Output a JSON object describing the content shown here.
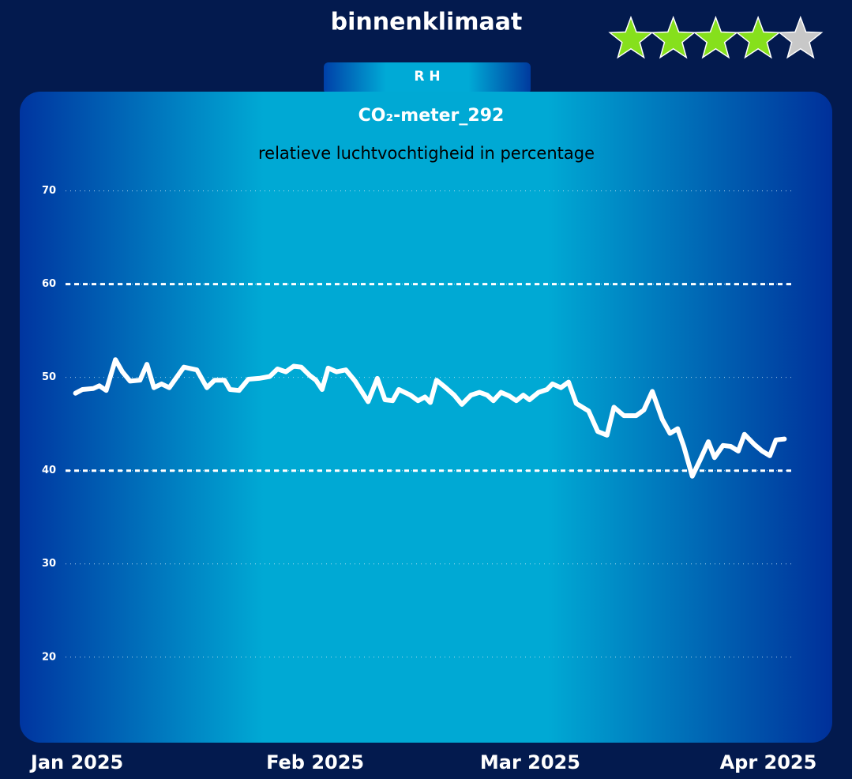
{
  "header": {
    "title": "binnenklimaat"
  },
  "rating": {
    "stars": 4,
    "max": 5
  },
  "tab": {
    "label": "R H"
  },
  "chart_data": {
    "type": "line",
    "title": "CO₂-meter_292",
    "subtitle": "relatieve luchtvochtigheid in percentage",
    "x": [
      -0.2,
      0.7,
      2.1,
      2.9,
      3.8,
      5.0,
      5.9,
      6.9,
      8.2,
      9.1,
      10.0,
      11.0,
      12.0,
      13.9,
      15.6,
      16.9,
      17.9,
      19.2,
      19.9,
      21.1,
      22.3,
      23.7,
      25.1,
      26.1,
      27.2,
      28.2,
      29.2,
      30.3,
      31.1,
      31.9,
      32.7,
      33.8,
      35.0,
      36.2,
      37.9,
      39.1,
      40.1,
      41.1,
      41.9,
      43.4,
      44.4,
      45.3,
      46.0,
      46.8,
      48.0,
      49.1,
      50.1,
      51.3,
      52.4,
      53.4,
      54.2,
      55.2,
      56.3,
      57.2,
      58.1,
      58.9,
      60.1,
      61.2,
      61.9,
      63.0,
      64.0,
      65.0,
      66.6,
      67.8,
      69.0,
      69.9,
      71.2,
      72.8,
      73.8,
      74.9,
      76.2,
      77.2,
      78.2,
      79.0,
      80.1,
      81.1,
      82.2,
      83.0,
      84.1,
      85.1,
      86.1,
      86.9,
      88.2,
      89.2,
      90.2,
      91.0,
      92.1
    ],
    "values": [
      48.3,
      48.7,
      48.8,
      49.1,
      48.6,
      51.9,
      50.6,
      49.6,
      49.7,
      51.4,
      48.9,
      49.3,
      48.9,
      51.1,
      50.8,
      48.9,
      49.7,
      49.7,
      48.7,
      48.6,
      49.8,
      49.9,
      50.1,
      50.9,
      50.6,
      51.2,
      51.1,
      50.2,
      49.7,
      48.7,
      51.0,
      50.6,
      50.8,
      49.6,
      47.4,
      49.9,
      47.6,
      47.5,
      48.7,
      48.1,
      47.5,
      47.9,
      47.3,
      49.7,
      48.9,
      48.1,
      47.1,
      48.1,
      48.4,
      48.1,
      47.5,
      48.4,
      48.0,
      47.5,
      48.1,
      47.6,
      48.4,
      48.7,
      49.3,
      48.9,
      49.5,
      47.2,
      46.4,
      44.2,
      43.8,
      46.8,
      45.9,
      45.9,
      46.5,
      48.5,
      45.5,
      44.0,
      44.5,
      42.6,
      39.4,
      41.1,
      43.1,
      41.4,
      42.7,
      42.6,
      42.1,
      43.9,
      42.8,
      42.1,
      41.6,
      43.3,
      43.4
    ],
    "color": "#ffffff",
    "xlim": [
      -1.5,
      93.5
    ],
    "xticks": [
      {
        "value": 0,
        "label": "Jan 2025"
      },
      {
        "value": 31,
        "label": "Feb 2025"
      },
      {
        "value": 59,
        "label": "Mar 2025"
      },
      {
        "value": 90,
        "label": "Apr 2025"
      }
    ],
    "ylim": [
      11,
      72
    ],
    "yticks": [
      20,
      30,
      40,
      50,
      60,
      70
    ],
    "grid": true,
    "reference_lines": [
      40,
      60
    ]
  }
}
